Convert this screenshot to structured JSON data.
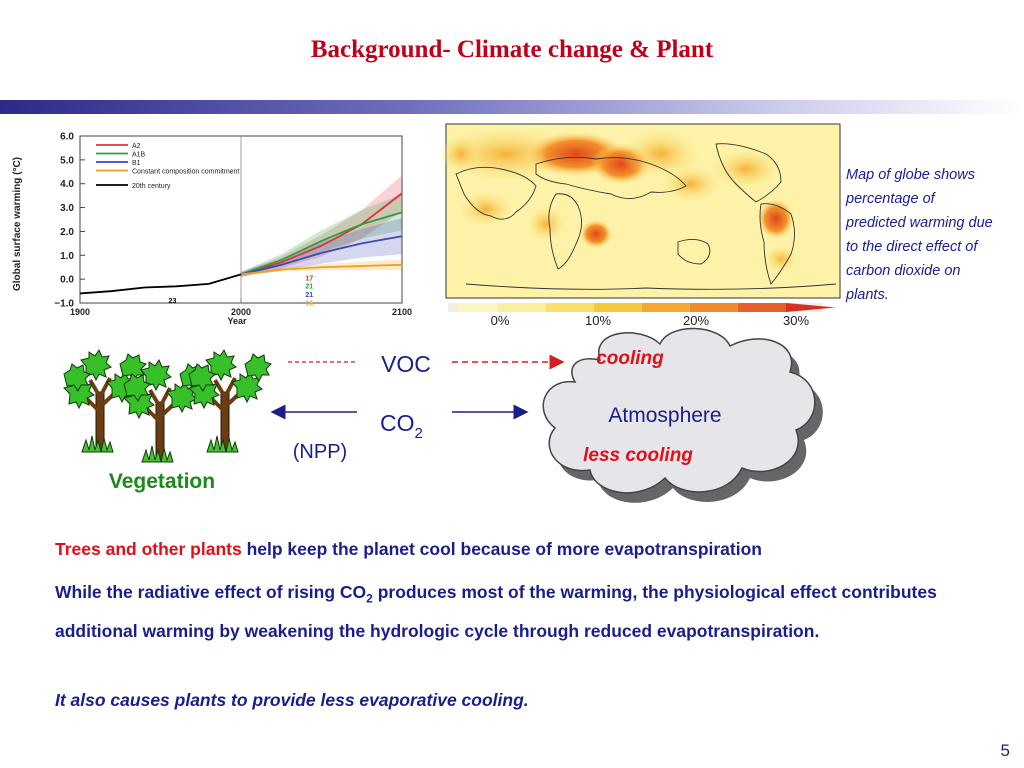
{
  "slide": {
    "title": "Background- Climate change & Plant",
    "page_number": "5"
  },
  "map": {
    "caption": "Map of globe shows percentage of predicted warming due to the direct effect of carbon dioxide on plants.",
    "colorbar_ticks": [
      "0%",
      "10%",
      "20%",
      "30%"
    ]
  },
  "diagram": {
    "voc_label": "VOC",
    "co2_label": "CO",
    "co2_sub": "2",
    "npp_label": "(NPP)",
    "vegetation_label": "Vegetation",
    "atmosphere_label": "Atmosphere",
    "cooling_label": "cooling",
    "less_cooling_label": "less cooling"
  },
  "text": {
    "p1_red": "Trees and other plants",
    "p1_rest": " help keep the planet cool because of more evapotranspiration",
    "p2_a": "While the radiative effect of rising CO",
    "p2_sub": "2",
    "p2_b": " produces most of the warming, the physiological effect contributes additional warming by weakening the hydrologic cycle through reduced evapotranspiration.",
    "p3": "It also causes plants to provide less evaporative cooling."
  },
  "colors": {
    "title": "#c0001a",
    "body_text": "#1a1e8c",
    "highlight_red": "#e0101a",
    "vegetation_green": "#1a8a1a"
  },
  "chart_data": {
    "type": "line",
    "ylabel": "Global surface warming (°C)",
    "xlabel": "Year",
    "x_ticks": [
      "1900",
      "2000",
      "2100"
    ],
    "y_ticks": [
      "6.0",
      "5.0",
      "4.0",
      "3.0",
      "2.0",
      "1.0",
      "0.0",
      "−1.0"
    ],
    "xlim": [
      1900,
      2100
    ],
    "ylim": [
      -1.0,
      6.0
    ],
    "legend_placement": "top-left",
    "series": [
      {
        "name": "A2",
        "color": "#e0303a",
        "x": [
          2000,
          2025,
          2050,
          2075,
          2100
        ],
        "y": [
          0.2,
          0.7,
          1.4,
          2.3,
          3.6
        ]
      },
      {
        "name": "A1B",
        "color": "#2aa040",
        "x": [
          2000,
          2025,
          2050,
          2075,
          2100
        ],
        "y": [
          0.2,
          0.8,
          1.6,
          2.3,
          2.8
        ]
      },
      {
        "name": "B1",
        "color": "#3a4ab0",
        "x": [
          2000,
          2025,
          2050,
          2075,
          2100
        ],
        "y": [
          0.2,
          0.6,
          1.1,
          1.5,
          1.8
        ]
      },
      {
        "name": "Constant composition commitment",
        "color": "#f0a020",
        "x": [
          2000,
          2025,
          2050,
          2075,
          2100
        ],
        "y": [
          0.2,
          0.4,
          0.5,
          0.55,
          0.6
        ]
      },
      {
        "name": "20th century",
        "color": "#000000",
        "x": [
          1900,
          1920,
          1940,
          1960,
          1980,
          2000
        ],
        "y": [
          -0.6,
          -0.5,
          -0.35,
          -0.3,
          -0.2,
          0.2
        ]
      }
    ],
    "annotations": [
      {
        "text": "17",
        "color": "#e0303a",
        "x": 2040,
        "y": -0.05
      },
      {
        "text": "21",
        "color": "#2aa040",
        "x": 2040,
        "y": -0.4
      },
      {
        "text": "21",
        "color": "#3a4ab0",
        "x": 2040,
        "y": -0.75
      },
      {
        "text": "16",
        "color": "#f0a020",
        "x": 2040,
        "y": -1.1
      },
      {
        "text": "23",
        "color": "#000000",
        "x": 1955,
        "y": -1.0
      }
    ]
  }
}
